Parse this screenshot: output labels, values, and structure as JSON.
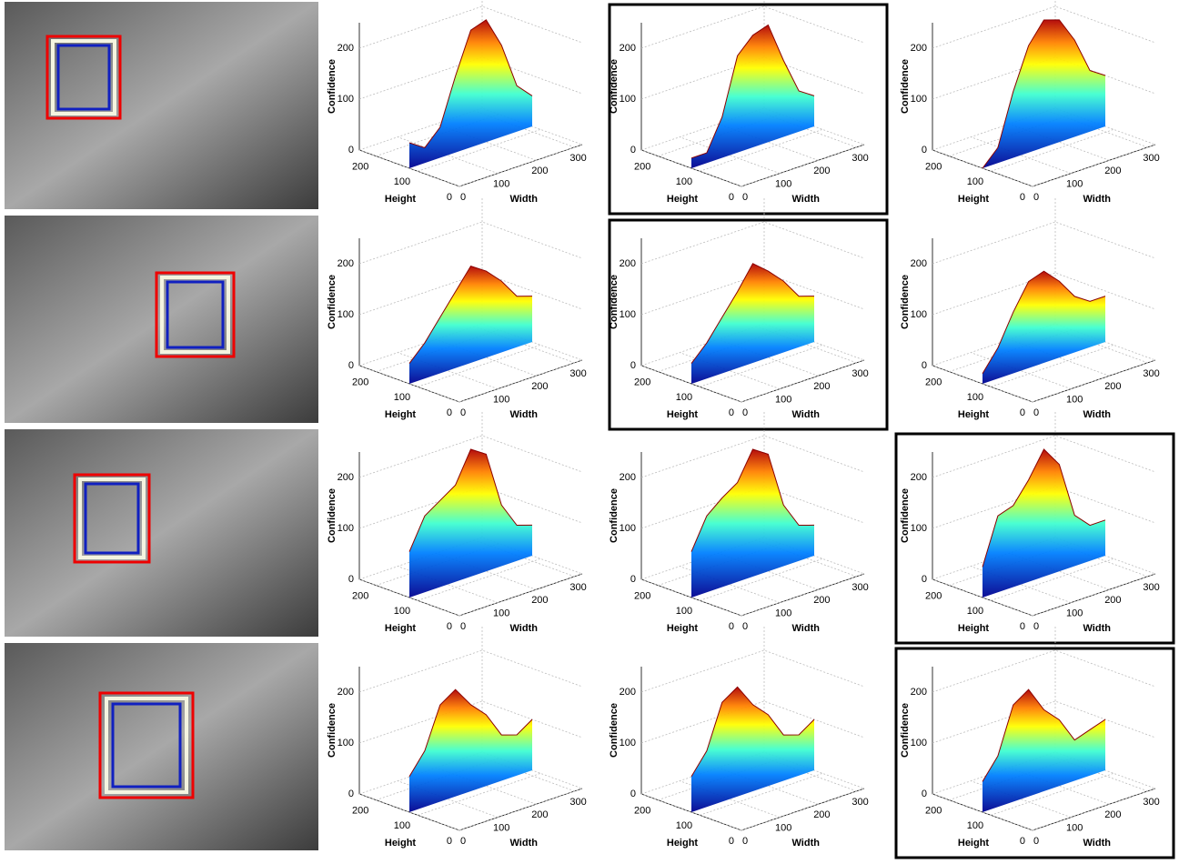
{
  "chart_data": [
    {
      "type": "surface",
      "zlabel": "Confidence",
      "ylabel": "Height",
      "xlabel": "Width",
      "zlim": [
        0,
        250
      ],
      "ylim": [
        0,
        240
      ],
      "xlim": [
        0,
        320
      ],
      "zticks": [
        0,
        100,
        200
      ],
      "yticks": [
        200,
        100,
        0
      ],
      "xticks": [
        0,
        100,
        200,
        300
      ],
      "highlighted": false,
      "x": [
        0,
        40,
        80,
        120,
        160,
        200,
        240,
        280,
        320
      ],
      "values": [
        50,
        30,
        60,
        150,
        230,
        240,
        180,
        90,
        60
      ]
    },
    {
      "type": "surface",
      "zlabel": "Confidence",
      "ylabel": "Height",
      "xlabel": "Width",
      "zlim": [
        0,
        250
      ],
      "ylim": [
        0,
        240
      ],
      "xlim": [
        0,
        320
      ],
      "zticks": [
        0,
        100,
        200
      ],
      "yticks": [
        200,
        100,
        0
      ],
      "xticks": [
        0,
        100,
        200,
        300
      ],
      "highlighted": true,
      "x": [
        0,
        40,
        80,
        120,
        160,
        200,
        240,
        280,
        320
      ],
      "values": [
        20,
        20,
        80,
        190,
        220,
        230,
        150,
        80,
        60
      ]
    },
    {
      "type": "surface",
      "zlabel": "Confidence",
      "ylabel": "Height",
      "xlabel": "Width",
      "zlim": [
        0,
        250
      ],
      "ylim": [
        0,
        240
      ],
      "xlim": [
        0,
        320
      ],
      "zticks": [
        0,
        100,
        200
      ],
      "yticks": [
        200,
        100,
        0
      ],
      "xticks": [
        0,
        100,
        200,
        300
      ],
      "highlighted": false,
      "x": [
        0,
        40,
        80,
        120,
        160,
        200,
        240,
        280,
        320
      ],
      "values": [
        0,
        30,
        130,
        210,
        250,
        240,
        190,
        120,
        100
      ]
    },
    {
      "type": "surface",
      "zlabel": "Confidence",
      "ylabel": "Height",
      "xlabel": "Width",
      "zlim": [
        0,
        250
      ],
      "ylim": [
        0,
        240
      ],
      "xlim": [
        0,
        320
      ],
      "zticks": [
        0,
        100,
        200
      ],
      "yticks": [
        200,
        100,
        0
      ],
      "xticks": [
        0,
        100,
        200,
        300
      ],
      "highlighted": false,
      "x": [
        0,
        40,
        80,
        120,
        160,
        200,
        240,
        280,
        320
      ],
      "values": [
        40,
        70,
        110,
        150,
        190,
        170,
        140,
        100,
        90
      ]
    },
    {
      "type": "surface",
      "zlabel": "Confidence",
      "ylabel": "Height",
      "xlabel": "Width",
      "zlim": [
        0,
        250
      ],
      "ylim": [
        0,
        240
      ],
      "xlim": [
        0,
        320
      ],
      "zticks": [
        0,
        100,
        200
      ],
      "yticks": [
        200,
        100,
        0
      ],
      "xticks": [
        0,
        100,
        200,
        300
      ],
      "highlighted": true,
      "x": [
        0,
        40,
        80,
        120,
        160,
        200,
        240,
        280,
        320
      ],
      "values": [
        40,
        70,
        110,
        150,
        195,
        170,
        140,
        100,
        90
      ]
    },
    {
      "type": "surface",
      "zlabel": "Confidence",
      "ylabel": "Height",
      "xlabel": "Width",
      "zlim": [
        0,
        250
      ],
      "ylim": [
        0,
        240
      ],
      "xlim": [
        0,
        320
      ],
      "zticks": [
        0,
        100,
        200
      ],
      "yticks": [
        200,
        100,
        0
      ],
      "xticks": [
        0,
        100,
        200,
        300
      ],
      "highlighted": false,
      "x": [
        0,
        40,
        80,
        120,
        160,
        200,
        240,
        280,
        320
      ],
      "values": [
        20,
        60,
        120,
        170,
        180,
        150,
        110,
        90,
        90
      ]
    },
    {
      "type": "surface",
      "zlabel": "Confidence",
      "ylabel": "Height",
      "xlabel": "Width",
      "zlim": [
        0,
        250
      ],
      "ylim": [
        0,
        240
      ],
      "xlim": [
        0,
        320
      ],
      "zticks": [
        0,
        100,
        200
      ],
      "yticks": [
        200,
        100,
        0
      ],
      "xticks": [
        0,
        100,
        200,
        300
      ],
      "highlighted": false,
      "x": [
        0,
        40,
        80,
        120,
        160,
        200,
        240,
        280,
        320
      ],
      "values": [
        90,
        150,
        170,
        190,
        250,
        230,
        120,
        70,
        60
      ]
    },
    {
      "type": "surface",
      "zlabel": "Confidence",
      "ylabel": "Height",
      "xlabel": "Width",
      "zlim": [
        0,
        250
      ],
      "ylim": [
        0,
        240
      ],
      "xlim": [
        0,
        320
      ],
      "zticks": [
        0,
        100,
        200
      ],
      "yticks": [
        200,
        100,
        0
      ],
      "xticks": [
        0,
        100,
        200,
        300
      ],
      "highlighted": false,
      "x": [
        0,
        40,
        80,
        120,
        160,
        200,
        240,
        280,
        320
      ],
      "values": [
        90,
        150,
        175,
        195,
        250,
        230,
        120,
        70,
        60
      ]
    },
    {
      "type": "surface",
      "zlabel": "Confidence",
      "ylabel": "Height",
      "xlabel": "Width",
      "zlim": [
        0,
        250
      ],
      "ylim": [
        0,
        240
      ],
      "xlim": [
        0,
        320
      ],
      "zticks": [
        0,
        100,
        200
      ],
      "yticks": [
        200,
        100,
        0
      ],
      "xticks": [
        0,
        100,
        200,
        300
      ],
      "highlighted": true,
      "x": [
        0,
        40,
        80,
        120,
        160,
        200,
        240,
        280,
        320
      ],
      "values": [
        60,
        150,
        160,
        200,
        250,
        210,
        100,
        70,
        70
      ]
    },
    {
      "type": "surface",
      "zlabel": "Confidence",
      "ylabel": "Height",
      "xlabel": "Width",
      "zlim": [
        0,
        250
      ],
      "ylim": [
        0,
        240
      ],
      "xlim": [
        0,
        320
      ],
      "zticks": [
        0,
        100,
        200
      ],
      "yticks": [
        200,
        100,
        0
      ],
      "xticks": [
        0,
        100,
        200,
        300
      ],
      "highlighted": false,
      "x": [
        0,
        40,
        80,
        120,
        160,
        200,
        240,
        280,
        320
      ],
      "values": [
        70,
        110,
        190,
        210,
        170,
        140,
        90,
        80,
        100
      ]
    },
    {
      "type": "surface",
      "zlabel": "Confidence",
      "ylabel": "Height",
      "xlabel": "Width",
      "zlim": [
        0,
        250
      ],
      "ylim": [
        0,
        240
      ],
      "xlim": [
        0,
        320
      ],
      "zticks": [
        0,
        100,
        200
      ],
      "yticks": [
        200,
        100,
        0
      ],
      "xticks": [
        0,
        100,
        200,
        300
      ],
      "highlighted": false,
      "x": [
        0,
        40,
        80,
        120,
        160,
        200,
        240,
        280,
        320
      ],
      "values": [
        70,
        110,
        195,
        215,
        170,
        140,
        90,
        80,
        100
      ]
    },
    {
      "type": "surface",
      "zlabel": "Confidence",
      "ylabel": "Height",
      "xlabel": "Width",
      "zlim": [
        0,
        250
      ],
      "ylim": [
        0,
        240
      ],
      "xlim": [
        0,
        320
      ],
      "zticks": [
        0,
        100,
        200
      ],
      "yticks": [
        200,
        100,
        0
      ],
      "xticks": [
        0,
        100,
        200,
        300
      ],
      "highlighted": true,
      "x": [
        0,
        40,
        80,
        120,
        160,
        200,
        240,
        280,
        320
      ],
      "values": [
        60,
        100,
        190,
        210,
        160,
        130,
        80,
        90,
        100
      ]
    }
  ]
}
